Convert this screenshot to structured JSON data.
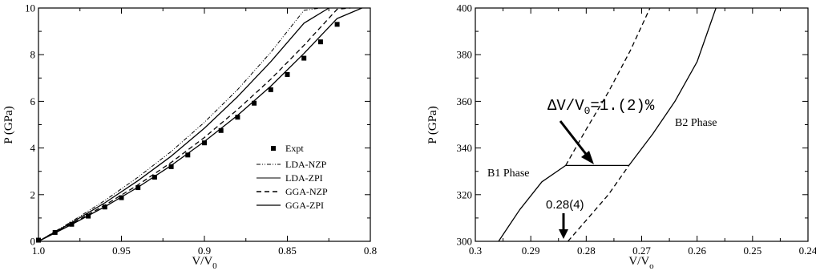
{
  "chart_data": [
    {
      "type": "line",
      "xlabel": "V/V",
      "xlabel_sub": "0",
      "ylabel": "P (GPa)",
      "xlim": [
        1.0,
        0.8
      ],
      "ylim": [
        0,
        10
      ],
      "x_ticks": [
        1.0,
        0.95,
        0.9,
        0.85,
        0.8
      ],
      "x_tick_labels": [
        "1.0",
        "0.95",
        "0.9",
        "0.85",
        "0.8"
      ],
      "y_ticks": [
        0,
        2,
        4,
        6,
        8,
        10
      ],
      "y_tick_labels": [
        "0",
        "2",
        "4",
        "6",
        "8",
        "10"
      ],
      "legend_position": "lower-right",
      "series": [
        {
          "name": "Expt",
          "style": "square-markers",
          "color": "#000000",
          "x": [
            1.0,
            0.99,
            0.98,
            0.97,
            0.96,
            0.95,
            0.94,
            0.93,
            0.92,
            0.91,
            0.9,
            0.89,
            0.88,
            0.87,
            0.86,
            0.85,
            0.84,
            0.83,
            0.82
          ],
          "y": [
            0.05,
            0.38,
            0.73,
            1.08,
            1.47,
            1.87,
            2.3,
            2.75,
            3.2,
            3.7,
            4.22,
            4.75,
            5.32,
            5.92,
            6.5,
            7.15,
            7.85,
            8.55,
            9.3
          ]
        },
        {
          "name": "LDA-NZP",
          "style": "dash-dot-dot",
          "color": "#000000",
          "x": [
            1.0,
            0.98,
            0.96,
            0.94,
            0.92,
            0.9,
            0.88,
            0.86,
            0.84,
            0.83
          ],
          "y": [
            0.0,
            0.85,
            1.75,
            2.75,
            3.85,
            5.1,
            6.5,
            8.1,
            9.9,
            10.0
          ]
        },
        {
          "name": "LDA-ZPI",
          "style": "solid",
          "color": "#000000",
          "x": [
            1.0,
            0.98,
            0.96,
            0.94,
            0.92,
            0.9,
            0.88,
            0.86,
            0.84,
            0.825
          ],
          "y": [
            0.0,
            0.8,
            1.65,
            2.6,
            3.65,
            4.85,
            6.2,
            7.7,
            9.35,
            10.0
          ]
        },
        {
          "name": "GGA-NZP",
          "style": "dashed",
          "color": "#000000",
          "x": [
            1.0,
            0.98,
            0.96,
            0.94,
            0.92,
            0.9,
            0.88,
            0.86,
            0.84,
            0.82,
            0.812
          ],
          "y": [
            0.0,
            0.75,
            1.55,
            2.42,
            3.38,
            4.45,
            5.65,
            6.95,
            8.4,
            9.95,
            10.0
          ]
        },
        {
          "name": "GGA-ZPI",
          "style": "solid",
          "color": "#000000",
          "x": [
            1.0,
            0.98,
            0.96,
            0.94,
            0.92,
            0.9,
            0.88,
            0.86,
            0.84,
            0.82,
            0.805
          ],
          "y": [
            0.0,
            0.72,
            1.48,
            2.32,
            3.25,
            4.28,
            5.4,
            6.65,
            8.05,
            9.55,
            10.0
          ]
        }
      ]
    },
    {
      "type": "line",
      "xlabel": "V/V",
      "xlabel_sub": "o",
      "ylabel": "P (GPa)",
      "xlim": [
        0.3,
        0.24
      ],
      "ylim": [
        300,
        400
      ],
      "x_ticks": [
        0.3,
        0.29,
        0.28,
        0.27,
        0.26,
        0.25,
        0.24
      ],
      "x_tick_labels": [
        "0.3",
        "0.29",
        "0.28",
        "0.27",
        "0.26",
        "0.25",
        "0.24"
      ],
      "y_ticks": [
        300,
        320,
        340,
        360,
        380,
        400
      ],
      "y_tick_labels": [
        "300",
        "320",
        "340",
        "360",
        "380",
        "400"
      ],
      "series": [
        {
          "style": "solid",
          "color": "#000000",
          "x": [
            0.2958,
            0.292,
            0.288,
            0.2837,
            0.2837
          ],
          "y": [
            300,
            313.5,
            325.5,
            332.5,
            332.5
          ]
        },
        {
          "style": "solid",
          "color": "#000000",
          "x": [
            0.2723,
            0.268,
            0.264,
            0.26,
            0.2566
          ],
          "y": [
            332.5,
            346,
            360,
            377,
            400
          ]
        },
        {
          "style": "dashed",
          "color": "#000000",
          "x": [
            0.2837,
            0.28,
            0.276,
            0.272,
            0.2685
          ],
          "y": [
            332.5,
            348,
            364,
            382,
            400
          ]
        },
        {
          "style": "dashed",
          "color": "#000000",
          "x": [
            0.2833,
            0.28,
            0.276,
            0.2723
          ],
          "y": [
            300,
            309,
            320,
            332.5
          ]
        },
        {
          "style": "solid",
          "color": "#000000",
          "x": [
            0.2837,
            0.2723
          ],
          "y": [
            332.5,
            332.5
          ]
        }
      ],
      "annotations": {
        "delta_label": "ΔV/V",
        "delta_sub": "0",
        "delta_value": "=1.(2)%",
        "b1_label": "B1 Phase",
        "b2_label": "B2 Phase",
        "transition_value": "0.28(4)"
      }
    }
  ]
}
